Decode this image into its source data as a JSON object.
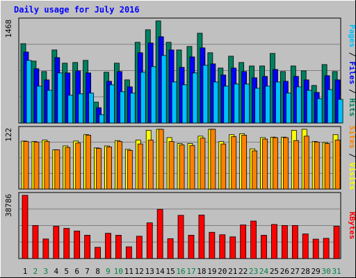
{
  "chart_data": {
    "type": "bar",
    "title": "Daily usage for July 2016",
    "categories": [
      "1",
      "2",
      "3",
      "4",
      "5",
      "6",
      "7",
      "8",
      "9",
      "10",
      "11",
      "12",
      "13",
      "14",
      "15",
      "16",
      "17",
      "18",
      "19",
      "20",
      "21",
      "22",
      "23",
      "24",
      "25",
      "26",
      "27",
      "28",
      "29",
      "30",
      "31"
    ],
    "weekend_days": [
      "2",
      "3",
      "9",
      "10",
      "16",
      "17",
      "23",
      "24",
      "30",
      "31"
    ],
    "panels": [
      {
        "id": "hits",
        "ymax_label": "1468",
        "ymax": 1468,
        "legend": [
          {
            "text": "Pages",
            "color": "#00c0ff"
          },
          {
            "text": " / ",
            "color": "#000000"
          },
          {
            "text": "Files",
            "color": "#0000ff"
          },
          {
            "text": " / ",
            "color": "#000000"
          },
          {
            "text": "Hits",
            "color": "#008060"
          }
        ],
        "series": [
          {
            "name": "Hits",
            "color": "#008060",
            "values": [
              1140,
              890,
              740,
              1050,
              860,
              870,
              900,
              300,
              730,
              860,
              620,
              1160,
              1340,
              1468,
              1160,
              1050,
              1100,
              1290,
              1010,
              790,
              960,
              870,
              820,
              820,
              1000,
              740,
              820,
              750,
              540,
              840,
              740
            ]
          },
          {
            "name": "Files",
            "color": "#0000ff",
            "values": [
              1020,
              780,
              620,
              940,
              720,
              750,
              720,
              220,
              600,
              740,
              520,
              1010,
              1150,
              1240,
              1050,
              800,
              950,
              1080,
              850,
              690,
              790,
              740,
              650,
              670,
              770,
              600,
              670,
              620,
              440,
              680,
              620
            ]
          },
          {
            "name": "Pages",
            "color": "#00c0ff",
            "values": [
              900,
              530,
              470,
              720,
              400,
              420,
              430,
              120,
              550,
              450,
              430,
              730,
              810,
              970,
              590,
              550,
              720,
              830,
              590,
              530,
              560,
              560,
              500,
              530,
              590,
              430,
              520,
              470,
              350,
              480,
              340
            ]
          }
        ]
      },
      {
        "id": "visits",
        "ymax_label": "122",
        "ymax": 122,
        "legend": [
          {
            "text": "Sites",
            "color": "#ff8000"
          },
          {
            "text": " / ",
            "color": "#000000"
          },
          {
            "text": "Visits",
            "color": "#ffff00"
          }
        ],
        "series": [
          {
            "name": "Visits",
            "color": "#ffff00",
            "values": [
              98,
              97,
              100,
              80,
              88,
              98,
              111,
              84,
              88,
              99,
              81,
              100,
              120,
              122,
              105,
              93,
              93,
              108,
              122,
              97,
              111,
              113,
              82,
              105,
              106,
              106,
              120,
              122,
              97,
              95,
              111
            ]
          },
          {
            "name": "Sites",
            "color": "#ff8000",
            "values": [
              97,
              96,
              97,
              80,
              85,
              94,
              110,
              83,
              86,
              97,
              79,
              92,
              100,
              122,
              97,
              90,
              89,
              104,
              122,
              92,
              107,
              110,
              78,
              102,
              105,
              105,
              99,
              108,
              96,
              93,
              100
            ]
          }
        ]
      },
      {
        "id": "kbytes",
        "ymax_label": "38786",
        "ymax": 38786,
        "legend": [
          {
            "text": "KBytes",
            "color": "#ff0000"
          }
        ],
        "series": [
          {
            "name": "KBytes",
            "color": "#ff0000",
            "values": [
              38786,
              20300,
              12000,
              19800,
              18500,
              16900,
              14300,
              6900,
              15500,
              14300,
              7200,
              13700,
              21900,
              30200,
              12200,
              26500,
              14300,
              26700,
              16100,
              14600,
              13300,
              20600,
              23000,
              14300,
              20900,
              20300,
              20300,
              15100,
              11900,
              12400,
              19800
            ]
          }
        ]
      }
    ]
  }
}
